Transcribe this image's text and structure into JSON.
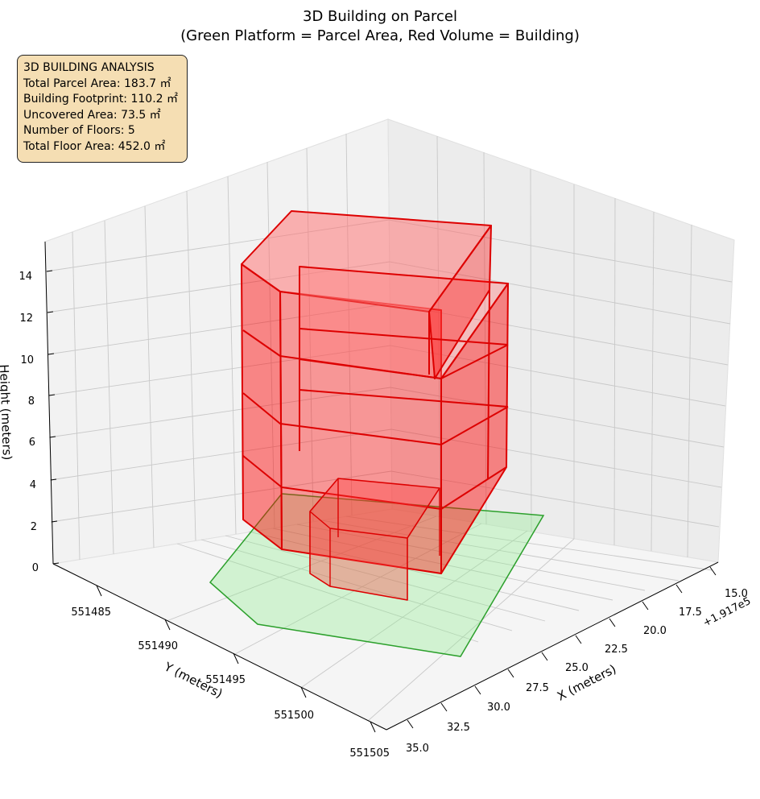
{
  "chart_data": {
    "type": "3d-polygons",
    "title": "3D Building on Parcel",
    "subtitle": "(Green Platform = Parcel Area, Red Volume = Building)",
    "xlabel": "X (meters)",
    "ylabel": "Y (meters)",
    "zlabel": "Height (meters)",
    "x_offset_label": "+1.917e5",
    "x_ticks": [
      "15.0",
      "17.5",
      "20.0",
      "22.5",
      "25.0",
      "27.5",
      "30.0",
      "32.5",
      "35.0"
    ],
    "y_ticks": [
      "551485",
      "551490",
      "551495",
      "551500",
      "551505"
    ],
    "z_ticks": [
      "0",
      "2",
      "4",
      "6",
      "8",
      "10",
      "12",
      "14"
    ],
    "grid": true,
    "colors": {
      "parcel_fill": "#90ee90",
      "parcel_edge": "#2ca02c",
      "building_fill": "#ff0000",
      "building_edge": "#dd0000",
      "info_box": "#f5deb3"
    }
  },
  "info": {
    "heading": "3D BUILDING ANALYSIS",
    "parcel_area": "Total Parcel Area: 183.7 ㎡",
    "footprint": "Building Footprint: 110.2 ㎡",
    "uncovered": "Uncovered Area: 73.5 ㎡",
    "floors": "Number of Floors: 5",
    "floor_area": "Total Floor Area: 452.0 ㎡"
  }
}
